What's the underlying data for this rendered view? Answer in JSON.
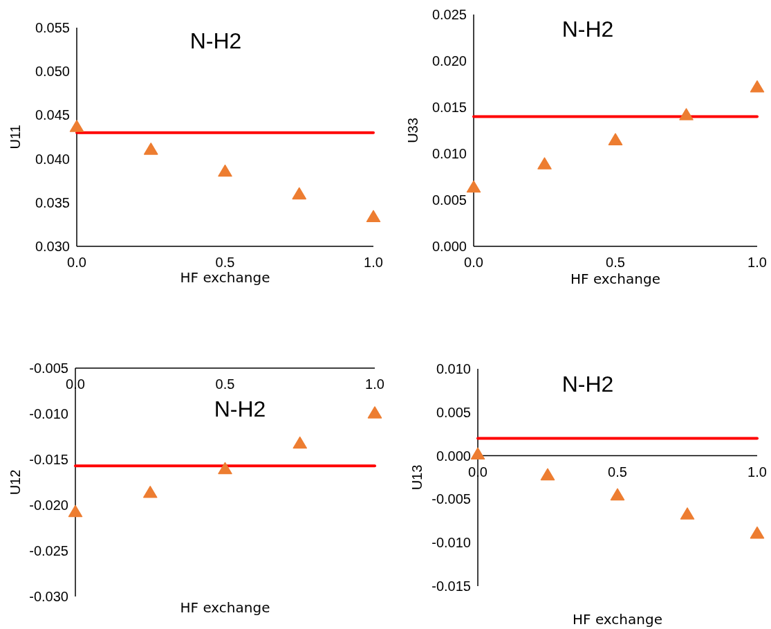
{
  "chart_data": [
    {
      "type": "scatter",
      "title": "N-H2",
      "xlabel": "HF exchange",
      "ylabel": "U11",
      "marker": "triangle",
      "xlim": [
        0,
        1
      ],
      "xticks": [
        {
          "value": 0,
          "label": "0.0"
        },
        {
          "value": 0.5,
          "label": "0.5"
        },
        {
          "value": 1,
          "label": "1.0"
        }
      ],
      "ylim": [
        0.03,
        0.055
      ],
      "yticks": [
        {
          "value": 0.03,
          "label": "0.030"
        },
        {
          "value": 0.035,
          "label": "0.035"
        },
        {
          "value": 0.04,
          "label": "0.040"
        },
        {
          "value": 0.045,
          "label": "0.045"
        },
        {
          "value": 0.05,
          "label": "0.050"
        },
        {
          "value": 0.055,
          "label": "0.055"
        }
      ],
      "x": [
        0,
        0.25,
        0.5,
        0.75,
        1
      ],
      "series": [
        {
          "color": "#ed7d31",
          "values": [
            0.0436,
            0.041,
            0.0385,
            0.0359,
            0.0333
          ]
        }
      ],
      "ref_lines": [
        {
          "axis": "y",
          "value": 0.043,
          "color": "#ff0000"
        }
      ]
    },
    {
      "type": "scatter",
      "title": "N-H2",
      "xlabel": "HF exchange",
      "ylabel": "U33",
      "marker": "triangle",
      "xlim": [
        0,
        1
      ],
      "xticks": [
        {
          "value": 0,
          "label": "0.0"
        },
        {
          "value": 0.5,
          "label": "0.5"
        },
        {
          "value": 1,
          "label": "1.0"
        }
      ],
      "ylim": [
        0,
        0.025
      ],
      "yticks": [
        {
          "value": 0,
          "label": "0.000"
        },
        {
          "value": 0.005,
          "label": "0.005"
        },
        {
          "value": 0.01,
          "label": "0.010"
        },
        {
          "value": 0.015,
          "label": "0.015"
        },
        {
          "value": 0.02,
          "label": "0.020"
        },
        {
          "value": 0.025,
          "label": "0.025"
        }
      ],
      "x": [
        0,
        0.25,
        0.5,
        0.75,
        1
      ],
      "series": [
        {
          "color": "#ed7d31",
          "values": [
            0.0063,
            0.0088,
            0.0114,
            0.0141,
            0.0171
          ]
        }
      ],
      "ref_lines": [
        {
          "axis": "y",
          "value": 0.014,
          "color": "#ff0000"
        }
      ]
    },
    {
      "type": "scatter",
      "title": "N-H2",
      "xlabel": "HF exchange",
      "ylabel": "U12",
      "marker": "triangle",
      "xlim": [
        0,
        1
      ],
      "xticks": [
        {
          "value": 0,
          "label": "0.0"
        },
        {
          "value": 0.5,
          "label": "0.5"
        },
        {
          "value": 1,
          "label": "1.0"
        }
      ],
      "ylim": [
        -0.03,
        -0.005
      ],
      "yticks": [
        {
          "value": -0.03,
          "label": "-0.030"
        },
        {
          "value": -0.025,
          "label": "-0.025"
        },
        {
          "value": -0.02,
          "label": "-0.020"
        },
        {
          "value": -0.015,
          "label": "-0.015"
        },
        {
          "value": -0.01,
          "label": "-0.010"
        },
        {
          "value": -0.005,
          "label": "-0.005"
        }
      ],
      "x": [
        0,
        0.25,
        0.5,
        0.75,
        1
      ],
      "series": [
        {
          "color": "#ed7d31",
          "values": [
            -0.0208,
            -0.0187,
            -0.0161,
            -0.0133,
            -0.01
          ]
        }
      ],
      "ref_lines": [
        {
          "axis": "y",
          "value": -0.0157,
          "color": "#ff0000"
        }
      ]
    },
    {
      "type": "scatter",
      "title": "N-H2",
      "xlabel": "HF exchange",
      "ylabel": "U13",
      "marker": "triangle",
      "xlim": [
        0,
        1
      ],
      "xticks": [
        {
          "value": 0,
          "label": "0.0"
        },
        {
          "value": 0.5,
          "label": "0.5"
        },
        {
          "value": 1,
          "label": "1.0"
        }
      ],
      "ylim": [
        -0.015,
        0.01
      ],
      "yticks": [
        {
          "value": -0.015,
          "label": "-0.015"
        },
        {
          "value": -0.01,
          "label": "-0.010"
        },
        {
          "value": -0.005,
          "label": "-0.005"
        },
        {
          "value": 0,
          "label": "0.000"
        },
        {
          "value": 0.005,
          "label": "0.005"
        },
        {
          "value": 0.01,
          "label": "0.010"
        }
      ],
      "x": [
        0,
        0.25,
        0.5,
        0.75,
        1
      ],
      "series": [
        {
          "color": "#ed7d31",
          "values": [
            0.0001,
            -0.0023,
            -0.0046,
            -0.0068,
            -0.009
          ]
        }
      ],
      "ref_lines": [
        {
          "axis": "y",
          "value": 0.002,
          "color": "#ff0000"
        }
      ]
    }
  ]
}
